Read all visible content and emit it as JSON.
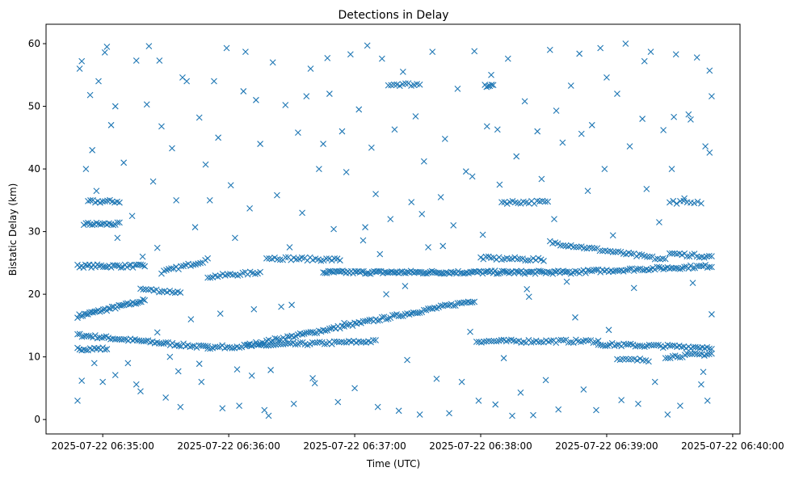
{
  "chart_data": {
    "type": "scatter",
    "title": "Detections in Delay",
    "xlabel": "Time (UTC)",
    "ylabel": "Bistatic Delay (km)",
    "x_units": "seconds after 2025-07-22 06:34:00",
    "xlim": [
      33,
      363.5
    ],
    "ylim": [
      -2.3,
      63.1
    ],
    "xticks": [
      {
        "value": 60,
        "label": "2025-07-22 06:35:00"
      },
      {
        "value": 120,
        "label": "2025-07-22 06:36:00"
      },
      {
        "value": 180,
        "label": "2025-07-22 06:37:00"
      },
      {
        "value": 240,
        "label": "2025-07-22 06:38:00"
      },
      {
        "value": 300,
        "label": "2025-07-22 06:39:00"
      },
      {
        "value": 360,
        "label": "2025-07-22 06:40:00"
      }
    ],
    "yticks": [
      {
        "value": 0,
        "label": "0"
      },
      {
        "value": 10,
        "label": "10"
      },
      {
        "value": 20,
        "label": "20"
      },
      {
        "value": 30,
        "label": "30"
      },
      {
        "value": 40,
        "label": "40"
      },
      {
        "value": 50,
        "label": "50"
      },
      {
        "value": 60,
        "label": "60"
      }
    ],
    "grid": false,
    "marker": "x",
    "color": "#1f77b4",
    "tracks": [
      {
        "t": [
          48,
          80
        ],
        "y": [
          16.5,
          19
        ],
        "n": 40
      },
      {
        "t": [
          48,
          110
        ],
        "y": [
          13.5,
          11.5
        ],
        "n": 60
      },
      {
        "t": [
          48,
          62
        ],
        "y": [
          11.3,
          11.3
        ],
        "n": 15
      },
      {
        "t": [
          48,
          80
        ],
        "y": [
          24.5,
          24.5
        ],
        "n": 35
      },
      {
        "t": [
          51,
          68
        ],
        "y": [
          31.2,
          31.2
        ],
        "n": 18
      },
      {
        "t": [
          53,
          68
        ],
        "y": [
          34.8,
          34.8
        ],
        "n": 14
      },
      {
        "t": [
          78,
          97
        ],
        "y": [
          20.8,
          20.3
        ],
        "n": 16
      },
      {
        "t": [
          88,
          110
        ],
        "y": [
          23.5,
          25.5
        ],
        "n": 20
      },
      {
        "t": [
          110,
          135
        ],
        "y": [
          22.8,
          23.5
        ],
        "n": 22
      },
      {
        "t": [
          110,
          190
        ],
        "y": [
          11.5,
          12.5
        ],
        "n": 70
      },
      {
        "t": [
          128,
          237
        ],
        "y": [
          11.8,
          19
        ],
        "n": 110
      },
      {
        "t": [
          138,
          173
        ],
        "y": [
          25.8,
          25.5
        ],
        "n": 28
      },
      {
        "t": [
          165,
          281
        ],
        "y": [
          23.5,
          23.5
        ],
        "n": 140
      },
      {
        "t": [
          196,
          211
        ],
        "y": [
          53.5,
          53.5
        ],
        "n": 12
      },
      {
        "t": [
          238,
          296
        ],
        "y": [
          12.5,
          12.5
        ],
        "n": 50
      },
      {
        "t": [
          242,
          246
        ],
        "y": [
          53.3,
          53.3
        ],
        "n": 6
      },
      {
        "t": [
          240,
          270
        ],
        "y": [
          25.8,
          25.5
        ],
        "n": 25
      },
      {
        "t": [
          250,
          272
        ],
        "y": [
          34.7,
          34.7
        ],
        "n": 18
      },
      {
        "t": [
          273,
          328
        ],
        "y": [
          28.3,
          25.5
        ],
        "n": 45
      },
      {
        "t": [
          281,
          350
        ],
        "y": [
          23.5,
          24.5
        ],
        "n": 70
      },
      {
        "t": [
          296,
          350
        ],
        "y": [
          12,
          11.5
        ],
        "n": 50
      },
      {
        "t": [
          305,
          320
        ],
        "y": [
          9.5,
          9.5
        ],
        "n": 12
      },
      {
        "t": [
          328,
          350
        ],
        "y": [
          10,
          10.5
        ],
        "n": 20
      },
      {
        "t": [
          330,
          350
        ],
        "y": [
          26.5,
          26
        ],
        "n": 18
      },
      {
        "t": [
          330,
          345
        ],
        "y": [
          34.7,
          34.7
        ],
        "n": 10
      }
    ],
    "points": [
      [
        48,
        3
      ],
      [
        49,
        56
      ],
      [
        50,
        57.2
      ],
      [
        52,
        40
      ],
      [
        54,
        51.8
      ],
      [
        55,
        43
      ],
      [
        57,
        36.5
      ],
      [
        58,
        54
      ],
      [
        60,
        6
      ],
      [
        61,
        58.6
      ],
      [
        62,
        59.5
      ],
      [
        64,
        47
      ],
      [
        66,
        50
      ],
      [
        67,
        29
      ],
      [
        70,
        41
      ],
      [
        72,
        9
      ],
      [
        74,
        32.5
      ],
      [
        76,
        57.3
      ],
      [
        78,
        4.5
      ],
      [
        79,
        26
      ],
      [
        81,
        50.3
      ],
      [
        82,
        59.6
      ],
      [
        84,
        38
      ],
      [
        86,
        27.4
      ],
      [
        87,
        57.3
      ],
      [
        88,
        46.8
      ],
      [
        90,
        3.5
      ],
      [
        92,
        10
      ],
      [
        93,
        43.3
      ],
      [
        95,
        35
      ],
      [
        97,
        2
      ],
      [
        98,
        54.6
      ],
      [
        100,
        54
      ],
      [
        102,
        16
      ],
      [
        104,
        30.7
      ],
      [
        106,
        48.2
      ],
      [
        107,
        6
      ],
      [
        109,
        40.7
      ],
      [
        111,
        35
      ],
      [
        113,
        54
      ],
      [
        115,
        45
      ],
      [
        117,
        1.8
      ],
      [
        119,
        59.3
      ],
      [
        121,
        37.4
      ],
      [
        123,
        29
      ],
      [
        125,
        2.2
      ],
      [
        127,
        52.4
      ],
      [
        128,
        58.7
      ],
      [
        130,
        33.7
      ],
      [
        131,
        7
      ],
      [
        133,
        51
      ],
      [
        135,
        44
      ],
      [
        137,
        1.5
      ],
      [
        139,
        0.6
      ],
      [
        141,
        57
      ],
      [
        143,
        35.8
      ],
      [
        145,
        18
      ],
      [
        147,
        50.2
      ],
      [
        149,
        27.5
      ],
      [
        151,
        2.5
      ],
      [
        153,
        45.8
      ],
      [
        155,
        33
      ],
      [
        157,
        51.6
      ],
      [
        159,
        56
      ],
      [
        161,
        5.8
      ],
      [
        163,
        40
      ],
      [
        165,
        44
      ],
      [
        167,
        57.7
      ],
      [
        168,
        52
      ],
      [
        170,
        30.4
      ],
      [
        172,
        2.8
      ],
      [
        174,
        46
      ],
      [
        176,
        39.5
      ],
      [
        178,
        58.3
      ],
      [
        180,
        5
      ],
      [
        182,
        49.5
      ],
      [
        184,
        28.6
      ],
      [
        186,
        59.7
      ],
      [
        188,
        43.4
      ],
      [
        190,
        36
      ],
      [
        191,
        2
      ],
      [
        193,
        57.6
      ],
      [
        195,
        20
      ],
      [
        197,
        32
      ],
      [
        199,
        46.3
      ],
      [
        201,
        1.4
      ],
      [
        203,
        55.5
      ],
      [
        205,
        9.5
      ],
      [
        207,
        34.7
      ],
      [
        209,
        48.4
      ],
      [
        211,
        0.8
      ],
      [
        213,
        41.2
      ],
      [
        215,
        27.5
      ],
      [
        217,
        58.7
      ],
      [
        219,
        6.5
      ],
      [
        221,
        35.5
      ],
      [
        223,
        44.8
      ],
      [
        225,
        1
      ],
      [
        227,
        31
      ],
      [
        229,
        52.8
      ],
      [
        231,
        6
      ],
      [
        233,
        39.6
      ],
      [
        235,
        14
      ],
      [
        237,
        58.8
      ],
      [
        239,
        3
      ],
      [
        241,
        29.5
      ],
      [
        243,
        46.8
      ],
      [
        245,
        55
      ],
      [
        247,
        2.4
      ],
      [
        249,
        37.5
      ],
      [
        251,
        9.8
      ],
      [
        253,
        57.6
      ],
      [
        255,
        0.6
      ],
      [
        257,
        42
      ],
      [
        259,
        4.3
      ],
      [
        261,
        50.8
      ],
      [
        263,
        19.6
      ],
      [
        265,
        0.7
      ],
      [
        267,
        46
      ],
      [
        269,
        38.4
      ],
      [
        271,
        6.3
      ],
      [
        273,
        59
      ],
      [
        275,
        32
      ],
      [
        277,
        1.6
      ],
      [
        279,
        44.2
      ],
      [
        281,
        22
      ],
      [
        283,
        53.3
      ],
      [
        285,
        16.3
      ],
      [
        287,
        58.4
      ],
      [
        289,
        4.8
      ],
      [
        291,
        36.5
      ],
      [
        293,
        47
      ],
      [
        295,
        1.5
      ],
      [
        297,
        59.3
      ],
      [
        299,
        40
      ],
      [
        301,
        14.3
      ],
      [
        303,
        29.4
      ],
      [
        305,
        52
      ],
      [
        307,
        3.1
      ],
      [
        309,
        60
      ],
      [
        311,
        43.6
      ],
      [
        313,
        21
      ],
      [
        315,
        2.5
      ],
      [
        317,
        48
      ],
      [
        319,
        36.8
      ],
      [
        321,
        58.7
      ],
      [
        323,
        6
      ],
      [
        325,
        31.5
      ],
      [
        327,
        46.2
      ],
      [
        329,
        0.8
      ],
      [
        331,
        40
      ],
      [
        333,
        58.3
      ],
      [
        335,
        2.2
      ],
      [
        337,
        35.3
      ],
      [
        339,
        48.7
      ],
      [
        341,
        21.8
      ],
      [
        343,
        57.8
      ],
      [
        345,
        5.6
      ],
      [
        347,
        43.6
      ],
      [
        348,
        3
      ],
      [
        349,
        55.7
      ],
      [
        350,
        51.6
      ],
      [
        350,
        16.8
      ],
      [
        349,
        42.6
      ],
      [
        346,
        7.6
      ],
      [
        340,
        47.9
      ],
      [
        332,
        48.3
      ],
      [
        318,
        57.2
      ],
      [
        300,
        54.6
      ],
      [
        288,
        45.6
      ],
      [
        276,
        49.3
      ],
      [
        262,
        20.8
      ],
      [
        248,
        46.3
      ],
      [
        236,
        38.8
      ],
      [
        222,
        27.7
      ],
      [
        212,
        32.8
      ],
      [
        204,
        21.3
      ],
      [
        192,
        26.4
      ],
      [
        185,
        30.7
      ],
      [
        175,
        15.4
      ],
      [
        160,
        6.6
      ],
      [
        150,
        18.3
      ],
      [
        140,
        7.9
      ],
      [
        132,
        17.6
      ],
      [
        124,
        8
      ],
      [
        116,
        16.9
      ],
      [
        106,
        8.9
      ],
      [
        96,
        7.7
      ],
      [
        86,
        13.9
      ],
      [
        76,
        5.6
      ],
      [
        66,
        7.1
      ],
      [
        56,
        9
      ],
      [
        50,
        6.2
      ]
    ]
  }
}
